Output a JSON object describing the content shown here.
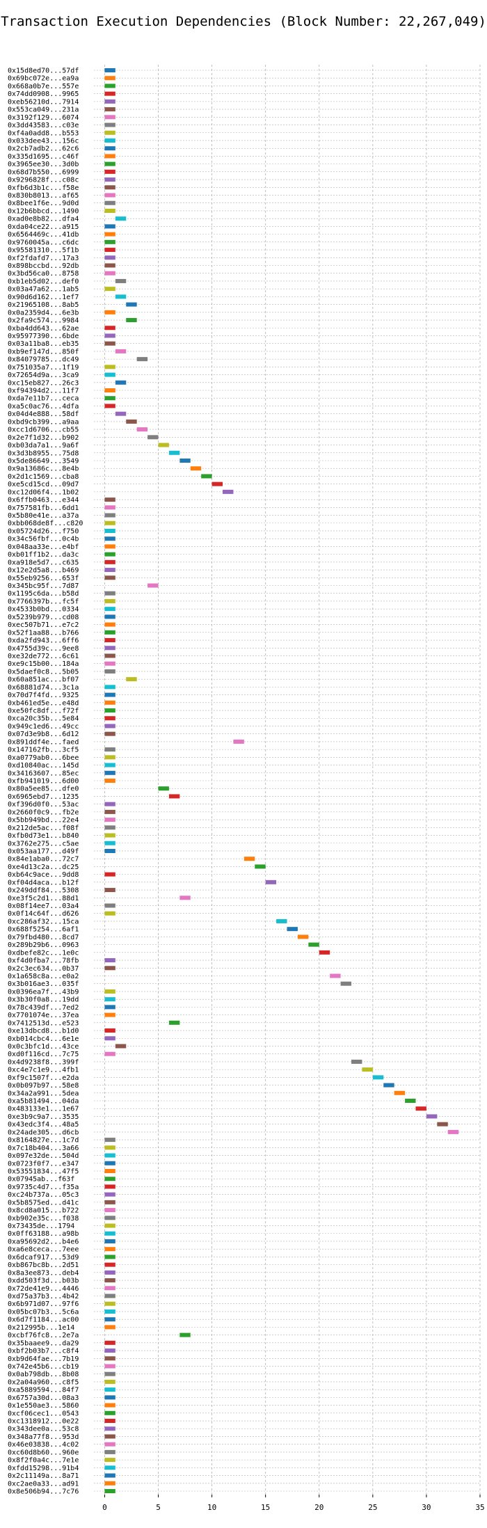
{
  "chart_data": {
    "type": "bar",
    "orientation": "horizontal",
    "title": "Transaction Execution Dependencies (Block Number: 22,267,049)",
    "xlabel": "",
    "ylabel": "",
    "xlim": [
      -1,
      35
    ],
    "xticks": [
      "0",
      "5",
      "10",
      "15",
      "20",
      "25",
      "30",
      "35"
    ],
    "grid": "on",
    "bar_width": 1,
    "palette": [
      "#1f77b4",
      "#ff7f0e",
      "#2ca02c",
      "#d62728",
      "#9467bd",
      "#8c564b",
      "#e377c2",
      "#7f7f7f",
      "#bcbd22",
      "#17becf"
    ],
    "transactions": [
      "0x15d8ed70...57df",
      "0x69bc072e...ea9a",
      "0x668a0b7e...557e",
      "0x74dd0908...9965",
      "0xeb56210d...7914",
      "0x553ca049...231a",
      "0x3192f129...6074",
      "0x3dd43583...c03e",
      "0xf4a0add8...b553",
      "0x033dee43...156c",
      "0x2cb7adb2...62c6",
      "0x335d1695...c46f",
      "0x3965ee30...3d0b",
      "0x68d7b550...6999",
      "0x9296828f...c08c",
      "0xfb6d3b1c...f58e",
      "0x830b8013...af65",
      "0x8bee1f6e...9d0d",
      "0x12b6bbcd...1490",
      "0xad0e8b82...dfa4",
      "0xda04ce22...a915",
      "0x6564469c...41db",
      "0x9760045a...c6dc",
      "0x95581310...5f1b",
      "0xf2fdafd7...17a3",
      "0x898bccbd...92db",
      "0x3bd56ca0...8758",
      "0xb1eb5d02...def0",
      "0x03a47a62...1ab5",
      "0x90d6d162...1ef7",
      "0x21965108...8ab5",
      "0x0a2359d4...6e3b",
      "0x2fa9c574...9984",
      "0xba4dd643...62ae",
      "0x95977390...6bde",
      "0x03a11ba8...eb35",
      "0xb9ef147d...850f",
      "0x84079785...dc49",
      "0x751035a7...1f19",
      "0x72654d9a...3ca9",
      "0xc15eb827...26c3",
      "0xf94394d2...11f7",
      "0xda7e11b7...ceca",
      "0xa5c0ac76...4dfa",
      "0x04d4e888...58df",
      "0xbd9cb399...a9aa",
      "0xcc1d6706...cb55",
      "0x2e7f1d32...b902",
      "0xb03da7a1...9a6f",
      "0x3d3b8955...75d8",
      "0x5de86649...3549",
      "0x9a13686c...8e4b",
      "0x2d1c1569...cba8",
      "0xe5cd15cd...09d7",
      "0xc12d06f4...1b02",
      "0x6ffb0463...e344",
      "0x757581fb...6dd1",
      "0x5b80e41e...a37a",
      "0xbb068de8f...c820",
      "0x05724d26...f750",
      "0x34c56fbf...0c4b",
      "0x048aa33e...e4bf",
      "0xb01ff1b2...da3c",
      "0xa918e5d7...c635",
      "0x12e2d5a8...b469",
      "0x55eb9256...653f",
      "0x345bc95f...7d87",
      "0x1195c6da...b58d",
      "0x7766397b...fc5f",
      "0x4533b0bd...0334",
      "0x5239b979...cd08",
      "0xec507b71...e7c2",
      "0x52f1aa88...b766",
      "0xda2fd943...6ff6",
      "0x4755d39c...9ee8",
      "0xe32de772...6c61",
      "0xe9c15b00...184a",
      "0x5daef0c8...5b05",
      "0x60a851ac...bf07",
      "0x68881d74...3c1a",
      "0x70d7f4fd...9325",
      "0xb461ed5e...e48d",
      "0xe50fc8df...f72f",
      "0xca20c35b...5e84",
      "0x949c1ed6...49cc",
      "0x07d3e9b8...6d12",
      "0x891ddf4e...faed",
      "0x147162fb...3cf5",
      "0xa0779ab0...6bee",
      "0xd10840ac...145d",
      "0x34163607...85ec",
      "0xfb941019...6d00",
      "0x80a5ee85...dfe0",
      "0x6965ebd7...1235",
      "0xf396d0f0...53ac",
      "0x2660f0c9...fb2e",
      "0x5bb949bd...22e4",
      "0x212de5ac...f08f",
      "0xfb0d73e1...b840",
      "0x3762e275...c5ae",
      "0x053aa177...d49f",
      "0x84e1aba0...72c7",
      "0xe4d13c2a...dc25",
      "0xb64c9ace...9dd8",
      "0xf04d4aca...b12f",
      "0x249ddf84...5308",
      "0xe3f5c2d1...88d1",
      "0x08f14ee7...03a4",
      "0x0f14c64f...d626",
      "0xc286af32...15ca",
      "0x688f5254...6af1",
      "0x79fbd480...8cd7",
      "0x289b29b6...0963",
      "0xdbefe82c...1e0c",
      "0xf4d0fba7...78fb",
      "0x2c3ec634...0b37",
      "0x1a658c8a...e0a2",
      "0x3b016ae3...035f",
      "0x0396ea7f...43b9",
      "0x3b30f0a8...19dd",
      "0x78c439df...7ed2",
      "0x7701074e...37ea",
      "0x7412513d...e523",
      "0xe13dbcd8...b1d0",
      "0xb014cbc4...6e1e",
      "0x0c3bfc1d...43ce",
      "0xd0f116cd...7c75",
      "0x4d9238f8...399f",
      "0xc4e7c1e9...4fb1",
      "0xf9c1507f...e2da",
      "0x0b097b97...58e8",
      "0x34a2a991...5dea",
      "0xa5b81494...04da",
      "0x483133e1...1e67",
      "0xe3b9c9a7...3535",
      "0x43edc3f4...48a5",
      "0x24ade305...d6cb",
      "0x8164827e...1c7d",
      "0x7c18b404...3a66",
      "0x097e32de...504d",
      "0x0723f0f7...e347",
      "0x53551834...47f5",
      "0x07945ab...f63f",
      "0x9735c4d7...f35a",
      "0xc24b737a...05c3",
      "0x5b8575ed...d41c",
      "0x8cd8a015...b722",
      "0xb902e35c...f038",
      "0x73435de...1794",
      "0x0ff63188...a98b",
      "0xa95692d2...b4e6",
      "0xa6e8ceca...7eee",
      "0x6dcaf917...53d9",
      "0xb867bc8b...2d51",
      "0x8a3ee873...deb4",
      "0xdd503f3d...b03b",
      "0x72de41e9...4446",
      "0xd75a37b3...4b42",
      "0x6b971d07...97f6",
      "0x05bc07b3...5c6a",
      "0x6d7f1184...ac00",
      "0x212995b...1e14",
      "0xcbf76fc8...2e7a",
      "0x35baaee9...da29",
      "0xbf2b03b7...c8f4",
      "0xb9d64fae...7b19",
      "0x742e45b6...cb19",
      "0x0ab798db...8b08",
      "0x2a04a960...c8f5",
      "0xa5889594...84f7",
      "0x6757a30d...08a3",
      "0x1e550ae3...5860",
      "0xcf06cec1...0543",
      "0xc1318912...0e22",
      "0x343dee0a...53c8",
      "0x348a77f8...953d",
      "0x46e03838...4c02",
      "0xc60d8b60...960e",
      "0x8f2f0a4c...7e1e",
      "0xfdd15298...91b4",
      "0x2c11149a...8a71",
      "0xc2ae0a33...ad91",
      "0x8e506b94...7c76"
    ],
    "start_values": [
      0,
      0,
      0,
      0,
      0,
      0,
      0,
      0,
      0,
      0,
      0,
      0,
      0,
      0,
      0,
      0,
      0,
      0,
      0,
      1,
      0,
      0,
      0,
      0,
      0,
      0,
      0,
      1,
      0,
      1,
      2,
      0,
      2,
      0,
      0,
      0,
      1,
      3,
      0,
      0,
      1,
      0,
      0,
      0,
      1,
      2,
      3,
      4,
      5,
      6,
      7,
      8,
      9,
      10,
      11,
      0,
      0,
      0,
      0,
      0,
      0,
      0,
      0,
      0,
      0,
      0,
      4,
      0,
      0,
      0,
      0,
      0,
      0,
      0,
      0,
      0,
      0,
      0,
      2,
      0,
      0,
      0,
      0,
      0,
      0,
      0,
      12,
      0,
      0,
      0,
      0,
      0,
      5,
      6,
      0,
      0,
      0,
      0,
      0,
      0,
      0,
      13,
      14,
      0,
      15,
      0,
      7,
      0,
      0,
      16,
      17,
      18,
      19,
      20,
      0,
      0,
      21,
      22,
      0,
      0,
      0,
      0,
      6,
      0,
      0,
      1,
      0,
      23,
      24,
      25,
      26,
      27,
      28,
      29,
      30,
      31,
      32,
      0,
      0,
      0,
      0,
      0,
      0,
      0,
      0,
      0,
      0,
      0,
      0,
      0,
      0,
      0,
      0,
      0,
      0,
      0,
      0,
      0,
      0,
      0,
      0,
      0,
      7,
      0,
      0,
      0,
      0,
      0,
      0,
      0,
      0,
      0,
      0,
      0,
      0,
      0,
      0,
      0,
      0,
      0,
      0,
      0,
      0
    ]
  }
}
